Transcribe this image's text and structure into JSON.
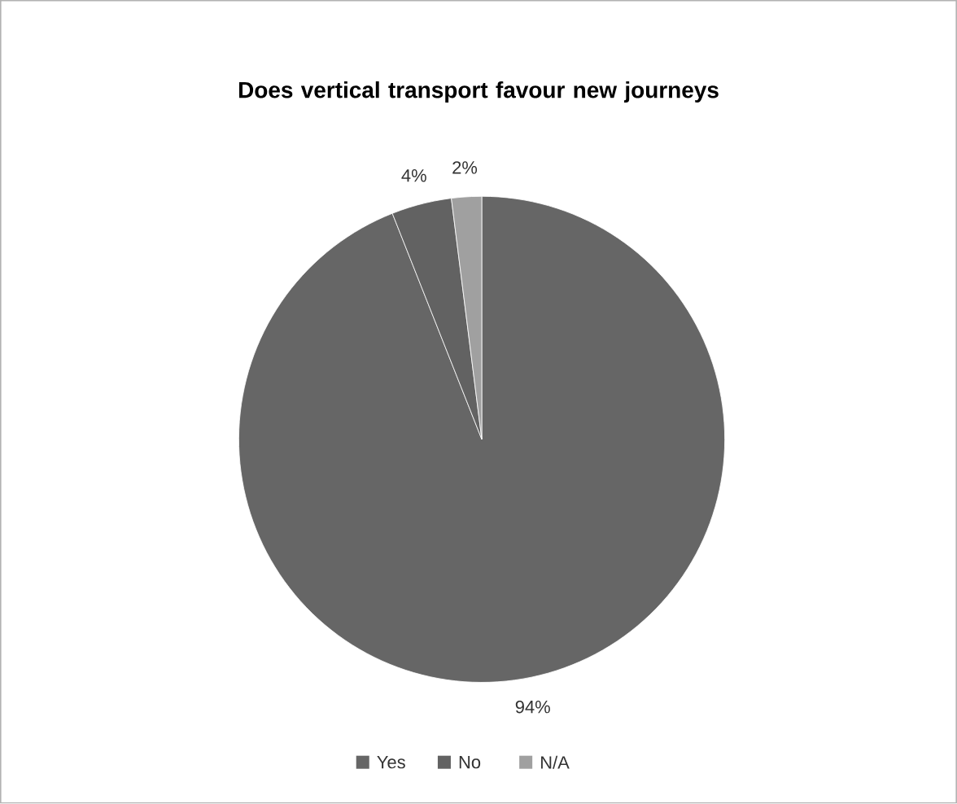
{
  "chart_data": {
    "type": "pie",
    "title": "Does vertical transport favour new journeys",
    "categories": [
      "Yes",
      "No",
      "N/A"
    ],
    "values": [
      94,
      4,
      2
    ],
    "value_labels": [
      "94%",
      "4%",
      "2%"
    ],
    "colors": [
      "#666666",
      "#626262",
      "#a0a0a0"
    ],
    "legend": "bottom"
  }
}
